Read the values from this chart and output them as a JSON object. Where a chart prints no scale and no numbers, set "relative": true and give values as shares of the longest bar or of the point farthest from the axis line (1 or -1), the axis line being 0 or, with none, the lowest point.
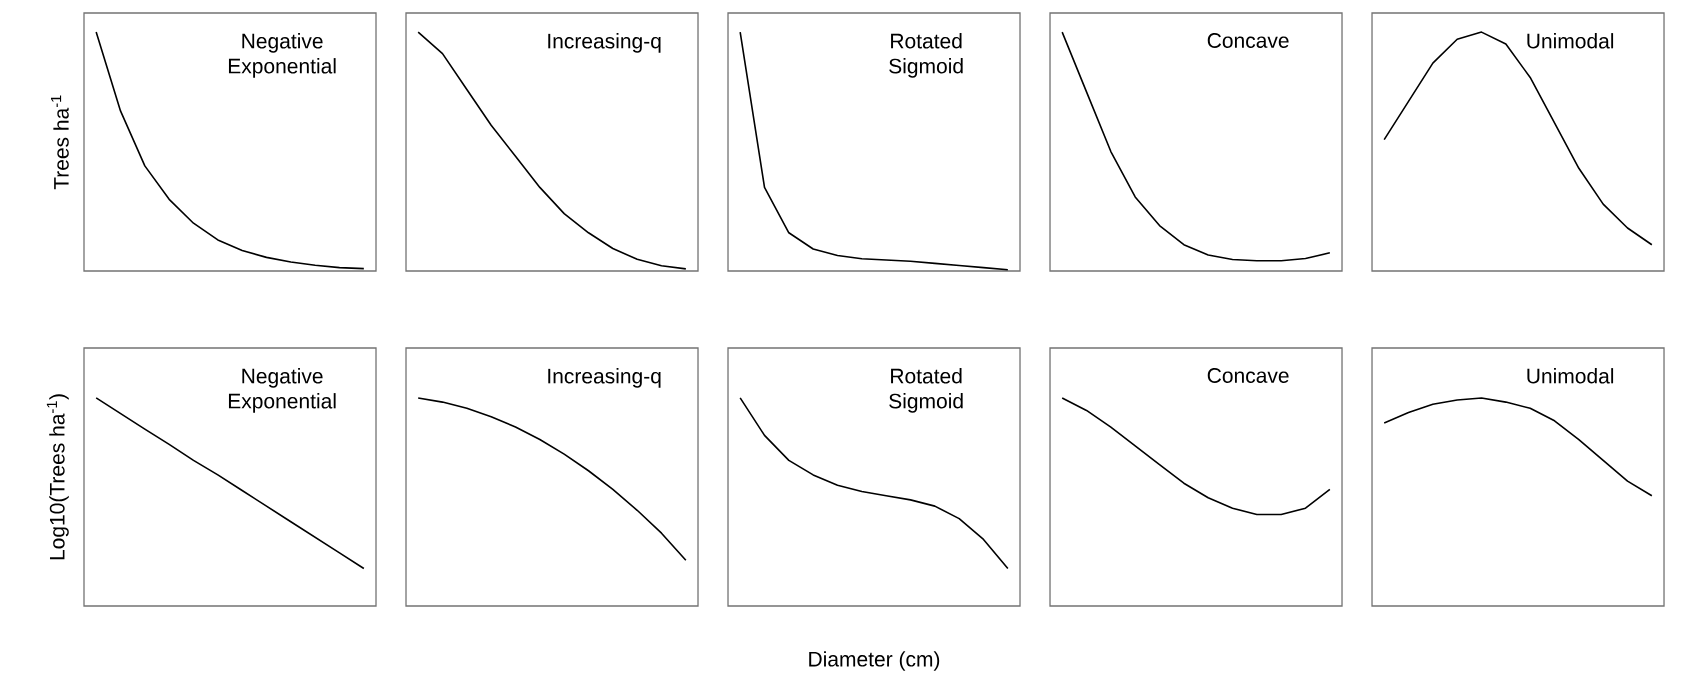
{
  "chart_data": [
    {
      "type": "line",
      "relative": true,
      "color": "#000000",
      "ylabel": "Trees ha$^{-1}$",
      "annotations": [
        "Negative Exponential"
      ],
      "categories": [
        null,
        null,
        null,
        null,
        null,
        null,
        null,
        null,
        null,
        null,
        null,
        null
      ],
      "values": [
        1,
        0.67,
        0.44,
        0.3,
        0.2,
        0.13,
        0.086,
        0.057,
        0.038,
        0.024,
        0.014,
        0.01
      ]
    },
    {
      "type": "line",
      "relative": true,
      "color": "#000000",
      "annotations": [
        "Increasing-q"
      ],
      "categories": [
        null,
        null,
        null,
        null,
        null,
        null,
        null,
        null,
        null,
        null,
        null,
        null
      ],
      "values": [
        1,
        0.91,
        0.76,
        0.61,
        0.48,
        0.35,
        0.24,
        0.16,
        0.094,
        0.049,
        0.022,
        0.009
      ]
    },
    {
      "type": "line",
      "relative": true,
      "color": "#000000",
      "annotations": [
        "Rotated Sigmoid"
      ],
      "categories": [
        null,
        null,
        null,
        null,
        null,
        null,
        null,
        null,
        null,
        null,
        null,
        null
      ],
      "values": [
        1,
        0.35,
        0.16,
        0.092,
        0.065,
        0.051,
        0.046,
        0.041,
        0.032,
        0.023,
        0.014,
        0.005
      ]
    },
    {
      "type": "line",
      "relative": true,
      "color": "#000000",
      "annotations": [
        "Concave"
      ],
      "categories": [
        null,
        null,
        null,
        null,
        null,
        null,
        null,
        null,
        null,
        null,
        null,
        null
      ],
      "values": [
        1,
        0.75,
        0.5,
        0.31,
        0.19,
        0.11,
        0.067,
        0.048,
        0.043,
        0.043,
        0.052,
        0.076
      ]
    },
    {
      "type": "line",
      "relative": true,
      "color": "#000000",
      "annotations": [
        "Unimodal"
      ],
      "categories": [
        null,
        null,
        null,
        null,
        null,
        null,
        null,
        null,
        null,
        null,
        null,
        null
      ],
      "values": [
        0.55,
        0.71,
        0.87,
        0.97,
        1,
        0.95,
        0.81,
        0.62,
        0.43,
        0.28,
        0.18,
        0.11
      ]
    },
    {
      "type": "line",
      "relative": true,
      "color": "#000000",
      "ylabel": "Log10(Trees ha$^{-1}$)",
      "annotations": [
        "Negative Exponential"
      ],
      "categories": [
        null,
        null,
        null,
        null,
        null,
        null,
        null,
        null,
        null,
        null,
        null,
        null
      ],
      "values": [
        1,
        0.925,
        0.85,
        0.777,
        0.7,
        0.63,
        0.555,
        0.48,
        0.405,
        0.33,
        0.255,
        0.18
      ]
    },
    {
      "type": "line",
      "relative": true,
      "color": "#000000",
      "annotations": [
        "Increasing-q"
      ],
      "categories": [
        null,
        null,
        null,
        null,
        null,
        null,
        null,
        null,
        null,
        null,
        null,
        null
      ],
      "values": [
        1,
        0.98,
        0.95,
        0.91,
        0.86,
        0.8,
        0.73,
        0.65,
        0.56,
        0.46,
        0.35,
        0.22
      ]
    },
    {
      "type": "line",
      "relative": true,
      "color": "#000000",
      "xlabel": "Diameter (cm)",
      "annotations": [
        "Rotated Sigmoid"
      ],
      "categories": [
        null,
        null,
        null,
        null,
        null,
        null,
        null,
        null,
        null,
        null,
        null,
        null
      ],
      "values": [
        1,
        0.82,
        0.7,
        0.63,
        0.58,
        0.55,
        0.53,
        0.51,
        0.48,
        0.42,
        0.32,
        0.18
      ]
    },
    {
      "type": "line",
      "relative": true,
      "color": "#000000",
      "annotations": [
        "Concave"
      ],
      "categories": [
        null,
        null,
        null,
        null,
        null,
        null,
        null,
        null,
        null,
        null,
        null,
        null
      ],
      "values": [
        1,
        0.94,
        0.86,
        0.77,
        0.68,
        0.59,
        0.52,
        0.47,
        0.44,
        0.44,
        0.47,
        0.56
      ]
    },
    {
      "type": "line",
      "relative": true,
      "color": "#000000",
      "annotations": [
        "Unimodal"
      ],
      "categories": [
        null,
        null,
        null,
        null,
        null,
        null,
        null,
        null,
        null,
        null,
        null,
        null
      ],
      "values": [
        0.88,
        0.93,
        0.97,
        0.99,
        1,
        0.98,
        0.95,
        0.89,
        0.8,
        0.7,
        0.6,
        0.53
      ]
    }
  ]
}
